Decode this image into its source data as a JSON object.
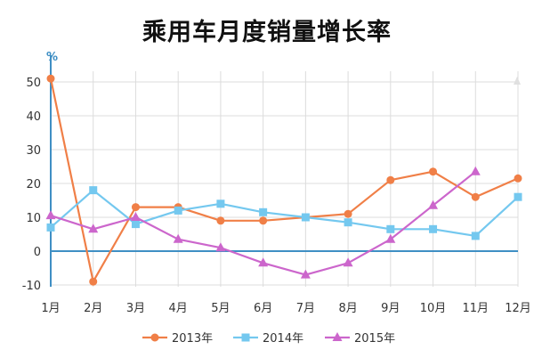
{
  "title": "乘用车月度销量增长率",
  "chart_data": {
    "type": "line",
    "title": "乘用车月度销量增长率",
    "y_unit": "%",
    "categories": [
      "1月",
      "2月",
      "3月",
      "4月",
      "5月",
      "6月",
      "7月",
      "8月",
      "9月",
      "10月",
      "11月",
      "12月"
    ],
    "ylim": [
      -10,
      50
    ],
    "yticks": [
      -10,
      0,
      10,
      20,
      30,
      40,
      50
    ],
    "grid": true,
    "legend_position": "bottom",
    "series": [
      {
        "name": "2013年",
        "color": "#f07f47",
        "marker": "circle",
        "values": [
          51,
          -9,
          13,
          13,
          9,
          9,
          10,
          11,
          21,
          23.5,
          16,
          21.5
        ]
      },
      {
        "name": "2014年",
        "color": "#74c8ef",
        "marker": "square",
        "values": [
          7,
          18,
          8,
          12,
          14,
          11.5,
          10,
          8.5,
          6.5,
          6.5,
          4.5,
          16
        ]
      },
      {
        "name": "2015年",
        "color": "#cc66cc",
        "marker": "triangle",
        "values": [
          10.5,
          6.5,
          10,
          3.5,
          1,
          -3.5,
          -7,
          -3.5,
          3.5,
          13.5,
          23.5,
          null
        ]
      }
    ]
  }
}
